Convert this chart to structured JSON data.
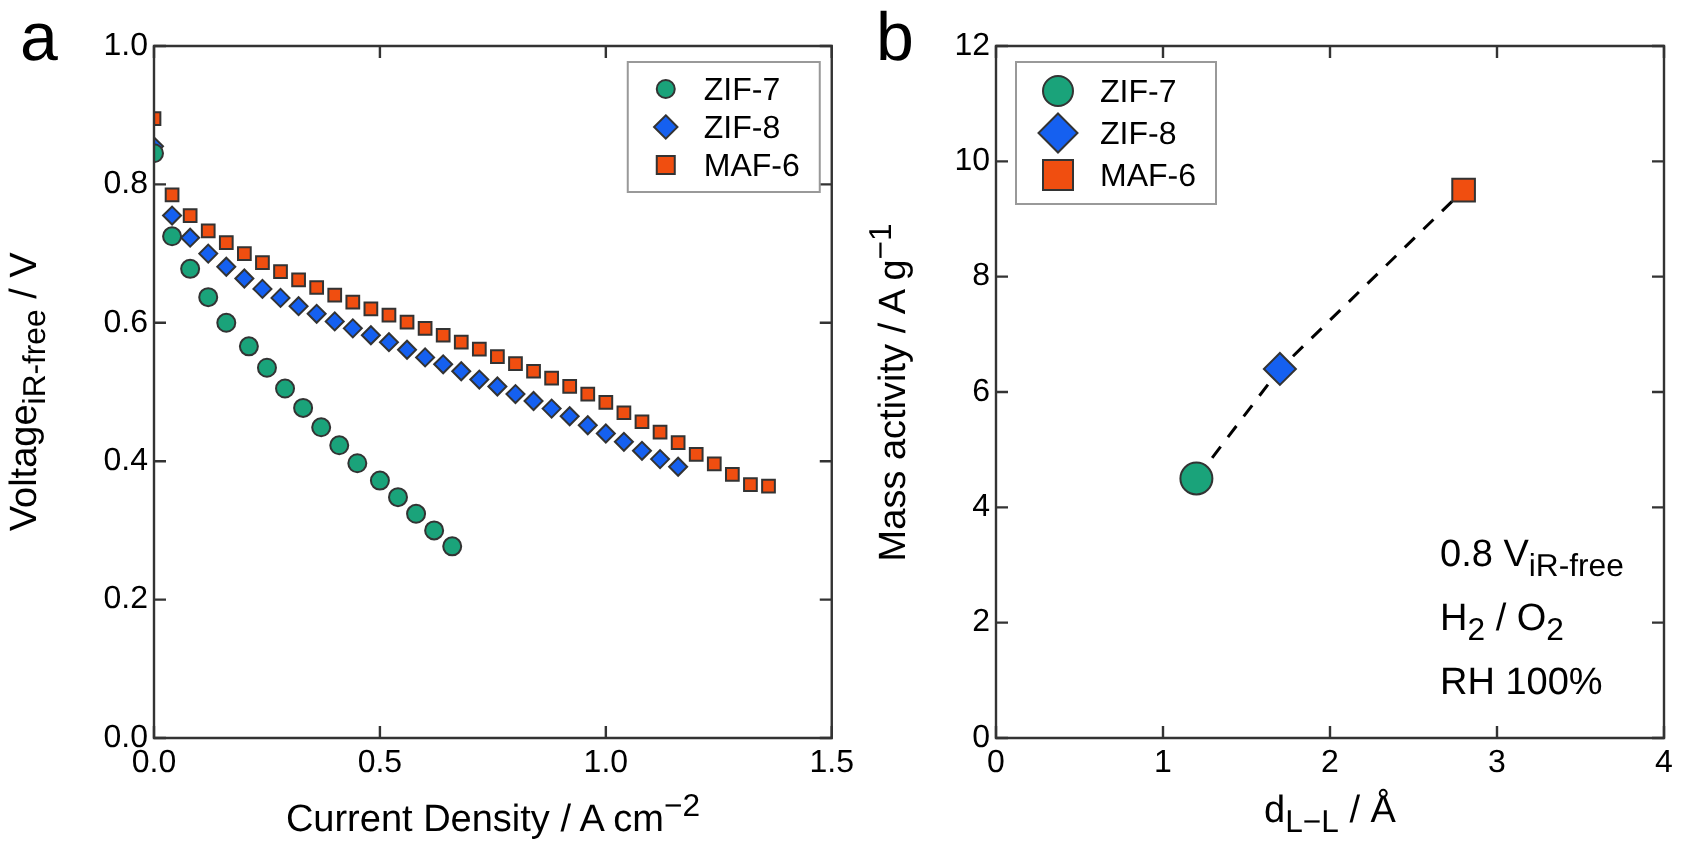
{
  "chart_data": [
    {
      "type": "scatter",
      "title": "a",
      "xlabel": "Current Density / A cm$^{−2}$",
      "ylabel": "Voltage$_{iR-free}$ / V",
      "xlim": [
        0,
        1.5
      ],
      "xticks": [
        {
          "value": 0,
          "label": "0.0"
        },
        0.5,
        {
          "value": 1,
          "label": "1.0"
        },
        1.5
      ],
      "ylim": [
        0,
        1
      ],
      "yticks": [
        {
          "value": 0,
          "label": "0.0"
        },
        0.2,
        0.4,
        0.6,
        0.8,
        {
          "value": 1,
          "label": "1.0"
        }
      ],
      "legend": "top right",
      "series": [
        {
          "name": "ZIF-7",
          "color": "#1aa37a",
          "marker": "circle",
          "x": [
            0,
            0.04,
            0.08,
            0.12,
            0.16,
            0.21,
            0.25,
            0.29,
            0.33,
            0.37,
            0.41,
            0.45,
            0.5,
            0.54,
            0.58,
            0.62,
            0.66
          ],
          "values": [
            0.845,
            0.725,
            0.678,
            0.637,
            0.6,
            0.566,
            0.535,
            0.505,
            0.477,
            0.449,
            0.423,
            0.397,
            0.372,
            0.348,
            0.324,
            0.3,
            0.277
          ]
        },
        {
          "name": "ZIF-8",
          "color": "#1560f0",
          "marker": "diamond",
          "x": [
            0,
            0.04,
            0.08,
            0.12,
            0.16,
            0.2,
            0.24,
            0.28,
            0.32,
            0.36,
            0.4,
            0.44,
            0.48,
            0.52,
            0.56,
            0.6,
            0.64,
            0.68,
            0.72,
            0.76,
            0.8,
            0.84,
            0.88,
            0.92,
            0.96,
            1.0,
            1.04,
            1.08,
            1.12,
            1.16
          ],
          "values": [
            0.855,
            0.755,
            0.723,
            0.7,
            0.681,
            0.664,
            0.649,
            0.636,
            0.624,
            0.613,
            0.602,
            0.592,
            0.582,
            0.572,
            0.561,
            0.55,
            0.54,
            0.53,
            0.518,
            0.508,
            0.497,
            0.487,
            0.476,
            0.465,
            0.452,
            0.44,
            0.428,
            0.415,
            0.403,
            0.392
          ]
        },
        {
          "name": "MAF-6",
          "color": "#f04e10",
          "marker": "square",
          "x": [
            0,
            0.04,
            0.08,
            0.12,
            0.16,
            0.2,
            0.24,
            0.28,
            0.32,
            0.36,
            0.4,
            0.44,
            0.48,
            0.52,
            0.56,
            0.6,
            0.64,
            0.68,
            0.72,
            0.76,
            0.8,
            0.84,
            0.88,
            0.92,
            0.96,
            1.0,
            1.04,
            1.08,
            1.12,
            1.16,
            1.2,
            1.24,
            1.28,
            1.32,
            1.36
          ],
          "values": [
            0.895,
            0.785,
            0.755,
            0.733,
            0.716,
            0.7,
            0.687,
            0.674,
            0.662,
            0.651,
            0.64,
            0.63,
            0.62,
            0.611,
            0.601,
            0.592,
            0.582,
            0.572,
            0.562,
            0.551,
            0.541,
            0.53,
            0.52,
            0.508,
            0.497,
            0.485,
            0.47,
            0.457,
            0.442,
            0.427,
            0.41,
            0.396,
            0.381,
            0.366,
            0.364
          ]
        }
      ]
    },
    {
      "type": "scatter",
      "title": "b",
      "xlabel": "d$_{L−L}$ / Å",
      "ylabel": "Mass activity / A g$^{−1}$",
      "xlim": [
        0,
        4
      ],
      "xticks": [
        0,
        1,
        2,
        3,
        4
      ],
      "ylim": [
        0,
        12
      ],
      "yticks": [
        0,
        2,
        4,
        6,
        8,
        10,
        12
      ],
      "legend": "top left",
      "annotations": [
        "0.8 V$_{iR-free}$",
        "H$_{2}$ / O$_{2}$",
        "RH 100%"
      ],
      "series": [
        {
          "type": "line",
          "color": "#000000",
          "marker": "none",
          "line_style": "dashed",
          "x": [
            1.2,
            1.7,
            2.8
          ],
          "values": [
            4.5,
            6.4,
            9.5
          ]
        },
        {
          "name": "ZIF-7",
          "color": "#1aa37a",
          "marker": "circle",
          "x": [
            1.2
          ],
          "values": [
            4.5
          ]
        },
        {
          "name": "ZIF-8",
          "color": "#1560f0",
          "marker": "diamond",
          "x": [
            1.7
          ],
          "values": [
            6.4
          ]
        },
        {
          "name": "MAF-6",
          "color": "#f04e10",
          "marker": "square",
          "x": [
            2.8
          ],
          "values": [
            9.5
          ]
        }
      ]
    }
  ]
}
